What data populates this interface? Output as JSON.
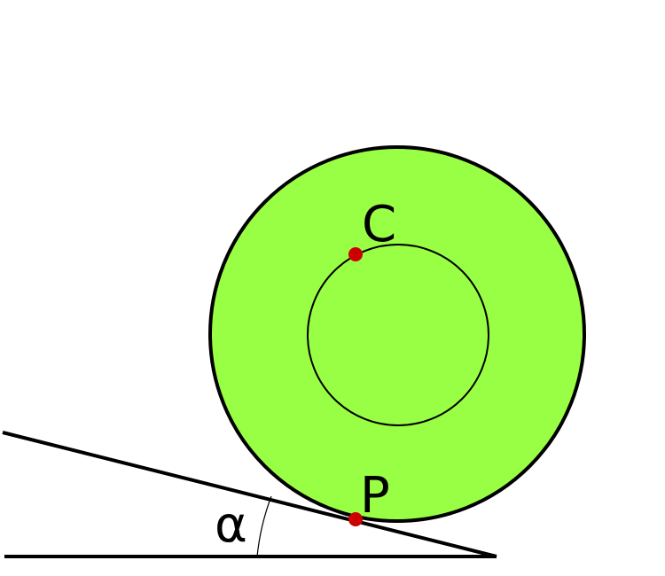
{
  "labels": {
    "center_point": "C",
    "contact_point": "P",
    "angle": "α"
  },
  "colors": {
    "disk_fill": "#99ff44",
    "stroke": "#000000",
    "point": "#cc0000",
    "background": "#ffffff"
  }
}
